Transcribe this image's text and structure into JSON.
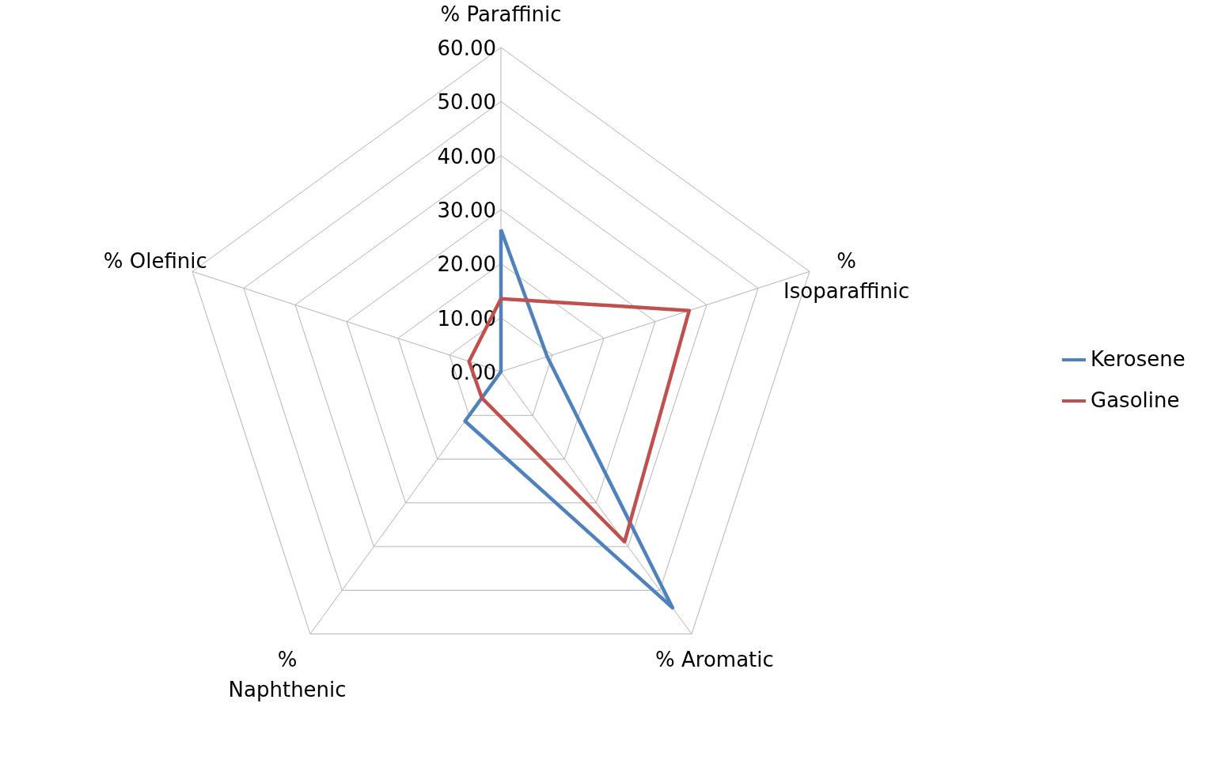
{
  "chart_data": {
    "type": "radar",
    "categories": [
      "% Paraffinic",
      "% Isoparaffinic",
      "% Aromatic",
      "% Naphthenic",
      "% Olefinic"
    ],
    "series": [
      {
        "name": "Kerosene",
        "color": "#4f81bd",
        "values": [
          26.3,
          9.0,
          54.0,
          11.3,
          0.0
        ]
      },
      {
        "name": "Gasoline",
        "color": "#c0504d",
        "values": [
          13.5,
          36.6,
          38.9,
          6.0,
          6.2
        ]
      }
    ],
    "ylim": [
      0,
      60
    ],
    "yticks": [
      {
        "value": 0,
        "label": "0.00"
      },
      {
        "value": 10,
        "label": "10.00"
      },
      {
        "value": 20,
        "label": "20.00"
      },
      {
        "value": 30,
        "label": "30.00"
      },
      {
        "value": 40,
        "label": "40.00"
      },
      {
        "value": 50,
        "label": "50.00"
      },
      {
        "value": 60,
        "label": "60.00"
      }
    ],
    "grid": true,
    "legend": "right",
    "marker": "none"
  }
}
